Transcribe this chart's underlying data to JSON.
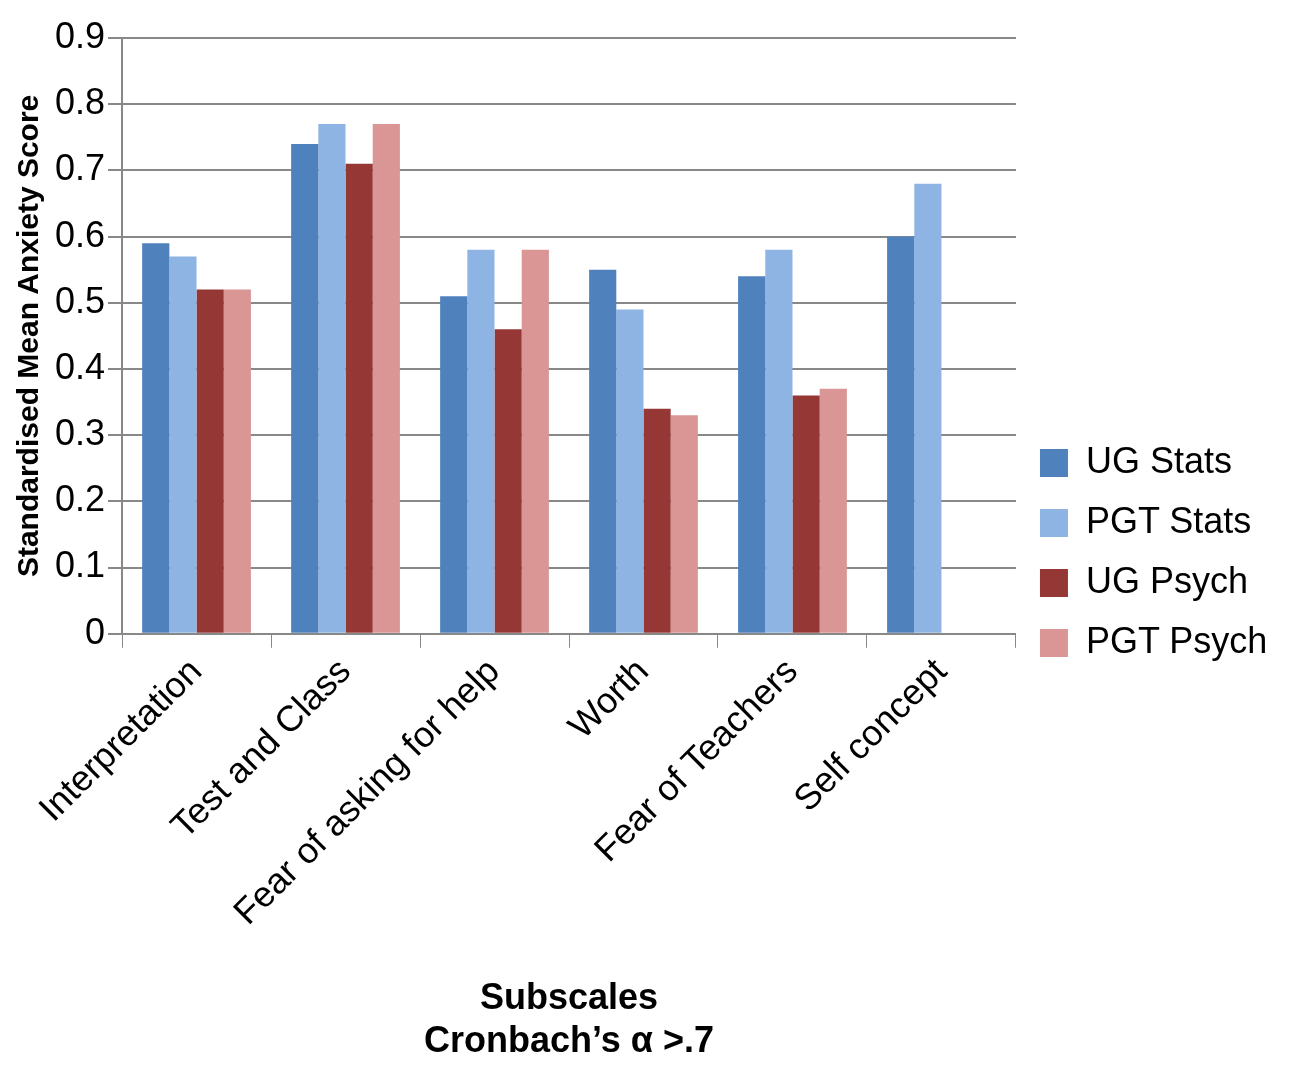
{
  "chart_data": {
    "type": "bar",
    "xlabel": "Subscales\nCronbach’s α >.7",
    "ylabel": "Standardised Mean Anxiety Score",
    "categories": [
      "Interpretation",
      "Test and Class",
      "Fear of asking for help",
      "Worth",
      "Fear of Teachers",
      "Self concept"
    ],
    "series": [
      {
        "name": "UG Stats",
        "color": "#4f81bd",
        "values": [
          0.59,
          0.74,
          0.51,
          0.55,
          0.54,
          0.6
        ]
      },
      {
        "name": "PGT Stats",
        "color": "#8eb4e3",
        "values": [
          0.57,
          0.77,
          0.58,
          0.49,
          0.58,
          0.68
        ]
      },
      {
        "name": "UG Psych",
        "color": "#953735",
        "values": [
          0.52,
          0.71,
          0.46,
          0.34,
          0.36,
          null
        ]
      },
      {
        "name": "PGT Psych",
        "color": "#d99694",
        "values": [
          0.52,
          0.77,
          0.58,
          0.33,
          0.37,
          null
        ]
      }
    ],
    "ylim": [
      0,
      0.9
    ],
    "yticks": [
      0,
      0.1,
      0.2,
      0.3,
      0.4,
      0.5,
      0.6,
      0.7,
      0.8,
      0.9
    ],
    "grid": "y",
    "legend": "right"
  }
}
